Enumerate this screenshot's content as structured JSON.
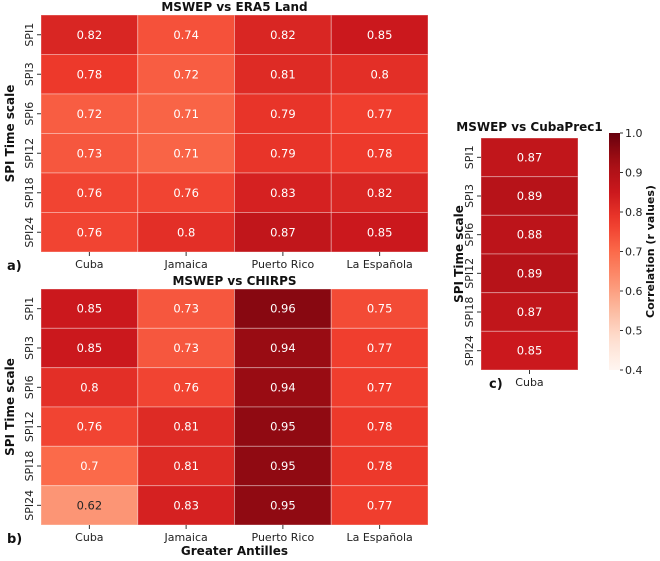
{
  "chart_data": {
    "type": "heatmap",
    "colorbar": {
      "label": "Correlation (r values)",
      "range": [
        0.4,
        1.0
      ],
      "ticks": [
        "1.0",
        "0.9",
        "0.8",
        "0.7",
        "0.6",
        "0.5",
        "0.4"
      ],
      "colormap": "Reds"
    },
    "panels": [
      {
        "id": "a",
        "tag": "a)",
        "title": "MSWEP vs ERA5 Land",
        "ylabel": "SPI Time scale",
        "xlabel": "",
        "rows": [
          "SPI1",
          "SPI3",
          "SPI6",
          "SPI12",
          "SPI18",
          "SPI24"
        ],
        "columns": [
          "Cuba",
          "Jamaica",
          "Puerto Rico",
          "La Española"
        ],
        "values": [
          [
            0.82,
            0.74,
            0.82,
            0.85
          ],
          [
            0.78,
            0.72,
            0.81,
            0.8
          ],
          [
            0.72,
            0.71,
            0.79,
            0.77
          ],
          [
            0.73,
            0.71,
            0.79,
            0.78
          ],
          [
            0.76,
            0.76,
            0.83,
            0.82
          ],
          [
            0.76,
            0.8,
            0.87,
            0.85
          ]
        ]
      },
      {
        "id": "b",
        "tag": "b)",
        "title": "MSWEP vs CHIRPS",
        "ylabel": "SPI Time scale",
        "xlabel": "Greater Antilles",
        "rows": [
          "SPI1",
          "SPI3",
          "SPI6",
          "SPI12",
          "SPI18",
          "SPI24"
        ],
        "columns": [
          "Cuba",
          "Jamaica",
          "Puerto Rico",
          "La Española"
        ],
        "values": [
          [
            0.85,
            0.73,
            0.96,
            0.75
          ],
          [
            0.85,
            0.73,
            0.94,
            0.77
          ],
          [
            0.8,
            0.76,
            0.94,
            0.77
          ],
          [
            0.76,
            0.81,
            0.95,
            0.78
          ],
          [
            0.7,
            0.81,
            0.95,
            0.78
          ],
          [
            0.62,
            0.83,
            0.95,
            0.77
          ]
        ]
      },
      {
        "id": "c",
        "tag": "c)",
        "title": "MSWEP vs CubaPrec1",
        "ylabel": "SPI Time scale",
        "xlabel": "",
        "rows": [
          "SPI1",
          "SPI3",
          "SPI6",
          "SPI12",
          "SPI18",
          "SPI24"
        ],
        "columns": [
          "Cuba"
        ],
        "values": [
          [
            0.87
          ],
          [
            0.89
          ],
          [
            0.88
          ],
          [
            0.89
          ],
          [
            0.87
          ],
          [
            0.85
          ]
        ]
      }
    ]
  }
}
